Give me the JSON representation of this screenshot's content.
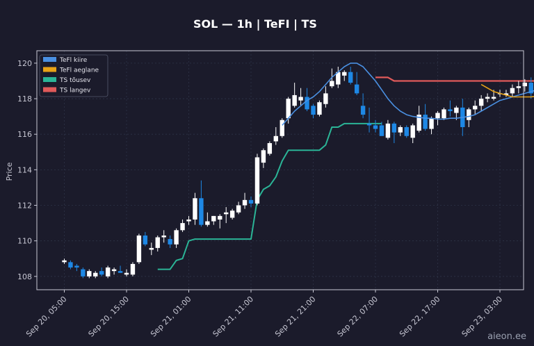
{
  "chart_data": {
    "type": "candlestick",
    "title": "SOL — 1h  |  TeFI  |  TS",
    "ylabel": "Price",
    "ylim": [
      107.25,
      120.7
    ],
    "yticks": [
      108,
      110,
      112,
      114,
      116,
      118,
      120
    ],
    "xticks": [
      "Sep 20, 05:00",
      "Sep 20, 15:00",
      "Sep 21, 01:00",
      "Sep 21, 11:00",
      "Sep 21, 21:00",
      "Sep 22, 07:00",
      "Sep 22, 17:00",
      "Sep 23, 03:00"
    ],
    "start_time": "Sep 20, 05:00",
    "interval": "1h",
    "grid": true,
    "legend_position": "top-left",
    "colors": {
      "background": "#1b1b2b",
      "up": "#ffffff",
      "down": "#1e88e5",
      "fast": "#4a90e2",
      "slow": "#e8a317",
      "ts_up": "#2bb597",
      "ts_down": "#e05a5a",
      "grid": "#2e3448",
      "axis": "#c8c8d4"
    },
    "legend": [
      {
        "label": "TeFl kiire",
        "color": "#4a90e2"
      },
      {
        "label": "TeFl aeglane",
        "color": "#e8a317"
      },
      {
        "label": "TS tõusev",
        "color": "#2bb597"
      },
      {
        "label": "TS langev",
        "color": "#e05a5a"
      }
    ],
    "candles": [
      [
        108.8,
        109.0,
        108.7,
        108.9
      ],
      [
        108.8,
        108.9,
        108.4,
        108.5
      ],
      [
        108.6,
        108.7,
        108.3,
        108.5
      ],
      [
        108.4,
        108.5,
        107.9,
        108.0
      ],
      [
        108.0,
        108.4,
        107.9,
        108.3
      ],
      [
        108.0,
        108.3,
        107.9,
        108.2
      ],
      [
        108.3,
        108.5,
        108.0,
        108.1
      ],
      [
        108.0,
        108.6,
        107.9,
        108.5
      ],
      [
        108.3,
        108.5,
        108.1,
        108.4
      ],
      [
        108.3,
        108.6,
        108.2,
        108.2
      ],
      [
        108.1,
        108.4,
        108.0,
        108.2
      ],
      [
        108.1,
        108.8,
        108.0,
        108.7
      ],
      [
        108.8,
        110.4,
        108.7,
        110.3
      ],
      [
        110.3,
        110.5,
        109.7,
        109.8
      ],
      [
        109.5,
        109.9,
        109.2,
        109.6
      ],
      [
        109.6,
        110.3,
        109.4,
        110.2
      ],
      [
        110.2,
        110.6,
        109.9,
        110.3
      ],
      [
        110.1,
        110.3,
        109.6,
        109.8
      ],
      [
        109.8,
        110.7,
        109.6,
        110.6
      ],
      [
        110.6,
        111.2,
        110.5,
        111.0
      ],
      [
        111.1,
        111.4,
        110.9,
        111.2
      ],
      [
        111.2,
        112.7,
        110.9,
        112.4
      ],
      [
        112.4,
        113.4,
        110.8,
        110.9
      ],
      [
        110.9,
        111.6,
        110.8,
        111.1
      ],
      [
        111.1,
        111.4,
        110.9,
        111.4
      ],
      [
        111.2,
        111.5,
        110.7,
        111.4
      ],
      [
        111.5,
        111.9,
        111.0,
        111.6
      ],
      [
        111.3,
        111.8,
        111.2,
        111.7
      ],
      [
        111.6,
        112.2,
        111.5,
        112.0
      ],
      [
        112.0,
        112.7,
        111.8,
        112.3
      ],
      [
        112.3,
        112.5,
        111.9,
        112.1
      ],
      [
        112.1,
        114.9,
        112.0,
        114.7
      ],
      [
        114.4,
        115.2,
        114.1,
        115.1
      ],
      [
        114.9,
        115.6,
        114.8,
        115.5
      ],
      [
        115.6,
        116.4,
        115.4,
        115.9
      ],
      [
        115.9,
        116.9,
        115.8,
        116.8
      ],
      [
        116.9,
        118.1,
        116.6,
        118.0
      ],
      [
        117.6,
        118.9,
        117.5,
        118.2
      ],
      [
        117.9,
        118.6,
        117.6,
        118.1
      ],
      [
        118.1,
        118.6,
        117.3,
        117.4
      ],
      [
        117.6,
        117.7,
        116.9,
        117.1
      ],
      [
        117.1,
        117.9,
        117.0,
        117.8
      ],
      [
        117.7,
        118.7,
        117.5,
        118.3
      ],
      [
        118.7,
        119.7,
        118.6,
        119.0
      ],
      [
        118.8,
        119.8,
        118.6,
        119.5
      ],
      [
        119.3,
        119.6,
        119.0,
        119.5
      ],
      [
        119.5,
        119.8,
        118.8,
        118.9
      ],
      [
        118.8,
        119.5,
        118.2,
        118.3
      ],
      [
        117.6,
        118.3,
        116.9,
        117.1
      ],
      [
        116.6,
        117.5,
        116.1,
        116.5
      ],
      [
        116.5,
        116.8,
        116.1,
        116.3
      ],
      [
        116.5,
        116.7,
        115.9,
        115.9
      ],
      [
        115.8,
        116.8,
        115.7,
        116.6
      ],
      [
        116.6,
        116.7,
        115.5,
        116.1
      ],
      [
        116.1,
        116.5,
        115.9,
        116.4
      ],
      [
        116.4,
        116.5,
        115.8,
        115.9
      ],
      [
        115.8,
        116.6,
        115.5,
        116.5
      ],
      [
        116.2,
        117.6,
        116.1,
        117.1
      ],
      [
        117.1,
        117.7,
        116.2,
        116.3
      ],
      [
        116.3,
        117.0,
        116.0,
        116.9
      ],
      [
        116.9,
        117.3,
        116.5,
        117.2
      ],
      [
        116.9,
        117.5,
        116.8,
        117.4
      ],
      [
        117.4,
        117.9,
        117.0,
        117.3
      ],
      [
        117.2,
        117.6,
        116.8,
        117.5
      ],
      [
        117.5,
        118.0,
        115.9,
        116.4
      ],
      [
        116.8,
        117.5,
        116.4,
        117.4
      ],
      [
        117.4,
        117.9,
        117.1,
        117.6
      ],
      [
        117.6,
        118.2,
        117.3,
        118.0
      ],
      [
        118.0,
        118.3,
        117.8,
        118.1
      ],
      [
        118.0,
        118.5,
        117.9,
        118.1
      ],
      [
        118.3,
        118.5,
        118.1,
        118.3
      ],
      [
        118.2,
        118.5,
        118.1,
        118.3
      ],
      [
        118.3,
        118.8,
        118.1,
        118.6
      ],
      [
        118.6,
        119.0,
        118.3,
        118.7
      ],
      [
        118.7,
        119.1,
        118.4,
        118.9
      ],
      [
        118.9,
        119.2,
        118.0,
        118.3
      ],
      [
        118.4,
        118.7,
        118.2,
        118.6
      ],
      [
        118.6,
        119.3,
        118.4,
        119.2
      ],
      [
        119.0,
        119.8,
        118.8,
        119.5
      ]
    ],
    "tefi_fast": [
      [
        35,
        116.5
      ],
      [
        36,
        116.9
      ],
      [
        37,
        117.3
      ],
      [
        38,
        117.6
      ],
      [
        39,
        117.9
      ],
      [
        40,
        118.1
      ],
      [
        41,
        118.4
      ],
      [
        42,
        118.8
      ],
      [
        43,
        119.2
      ],
      [
        44,
        119.5
      ],
      [
        45,
        119.8
      ],
      [
        46,
        120.0
      ],
      [
        47,
        120.0
      ],
      [
        48,
        119.8
      ],
      [
        49,
        119.4
      ],
      [
        50,
        119.0
      ],
      [
        51,
        118.5
      ],
      [
        52,
        118.0
      ],
      [
        53,
        117.6
      ],
      [
        54,
        117.3
      ],
      [
        55,
        117.1
      ],
      [
        56,
        117.0
      ],
      [
        57,
        116.95
      ],
      [
        58,
        116.9
      ],
      [
        59,
        116.9
      ],
      [
        60,
        116.85
      ],
      [
        61,
        116.85
      ],
      [
        62,
        116.9
      ],
      [
        63,
        116.9
      ],
      [
        64,
        116.95
      ],
      [
        65,
        117.0
      ],
      [
        66,
        117.1
      ],
      [
        67,
        117.3
      ],
      [
        68,
        117.5
      ],
      [
        69,
        117.7
      ],
      [
        70,
        117.9
      ],
      [
        71,
        118.0
      ],
      [
        72,
        118.1
      ],
      [
        73,
        118.2
      ],
      [
        74,
        118.3
      ],
      [
        75,
        118.4
      ],
      [
        76,
        118.5
      ],
      [
        77,
        118.6
      ],
      [
        78,
        118.8
      ],
      [
        79,
        118.9
      ]
    ],
    "tefi_slow": [
      [
        67,
        118.8
      ],
      [
        68,
        118.6
      ],
      [
        69,
        118.4
      ],
      [
        70,
        118.3
      ],
      [
        71,
        118.2
      ],
      [
        72,
        118.1
      ],
      [
        73,
        118.1
      ],
      [
        74,
        118.1
      ],
      [
        75,
        118.1
      ],
      [
        76,
        118.15
      ],
      [
        77,
        118.2
      ],
      [
        78,
        118.3
      ],
      [
        79,
        118.3
      ]
    ],
    "ts_up": [
      [
        15,
        108.4
      ],
      [
        16,
        108.4
      ],
      [
        17,
        108.4
      ],
      [
        18,
        108.9
      ],
      [
        19,
        109.0
      ],
      [
        20,
        110.0
      ],
      [
        21,
        110.1
      ],
      [
        22,
        110.1
      ],
      [
        23,
        110.1
      ],
      [
        24,
        110.1
      ],
      [
        25,
        110.1
      ],
      [
        26,
        110.1
      ],
      [
        27,
        110.1
      ],
      [
        28,
        110.1
      ],
      [
        29,
        110.1
      ],
      [
        30,
        110.1
      ],
      [
        31,
        112.3
      ],
      [
        32,
        112.9
      ],
      [
        33,
        113.1
      ],
      [
        34,
        113.6
      ],
      [
        35,
        114.5
      ],
      [
        36,
        115.1
      ],
      [
        37,
        115.1
      ],
      [
        38,
        115.1
      ],
      [
        39,
        115.1
      ],
      [
        40,
        115.1
      ],
      [
        41,
        115.1
      ],
      [
        42,
        115.4
      ],
      [
        43,
        116.4
      ],
      [
        44,
        116.4
      ],
      [
        45,
        116.6
      ],
      [
        46,
        116.6
      ],
      [
        47,
        116.6
      ],
      [
        48,
        116.6
      ],
      [
        49,
        116.6
      ],
      [
        50,
        116.6
      ],
      [
        51,
        116.6
      ]
    ],
    "ts_up_2": [
      [
        78,
        116.7
      ],
      [
        79,
        117.1
      ]
    ],
    "ts_down": [
      [
        50,
        119.2
      ],
      [
        51,
        119.2
      ],
      [
        52,
        119.2
      ],
      [
        53,
        119.0
      ],
      [
        54,
        119.0
      ],
      [
        55,
        119.0
      ],
      [
        56,
        119.0
      ],
      [
        57,
        119.0
      ],
      [
        58,
        119.0
      ],
      [
        59,
        119.0
      ],
      [
        60,
        119.0
      ],
      [
        61,
        119.0
      ],
      [
        62,
        119.0
      ],
      [
        63,
        119.0
      ],
      [
        64,
        119.0
      ],
      [
        65,
        119.0
      ],
      [
        66,
        119.0
      ],
      [
        67,
        119.0
      ],
      [
        68,
        119.0
      ],
      [
        69,
        119.0
      ],
      [
        70,
        119.0
      ],
      [
        71,
        119.0
      ],
      [
        72,
        119.0
      ],
      [
        73,
        119.0
      ],
      [
        74,
        119.0
      ],
      [
        75,
        119.0
      ],
      [
        76,
        119.0
      ]
    ]
  },
  "watermark": "aieon.ee"
}
